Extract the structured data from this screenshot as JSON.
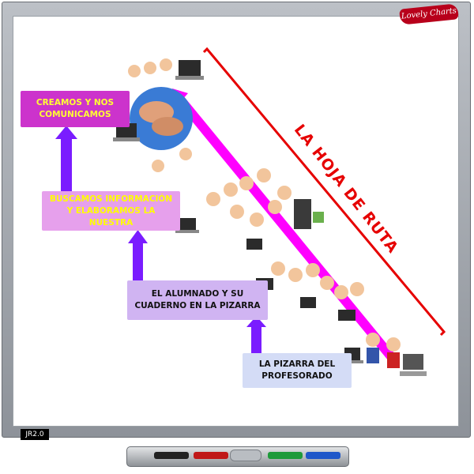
{
  "board": {
    "brand": "Lovely Charts",
    "badge": "JR2.0"
  },
  "title": "LA HOJA DE RUTA",
  "steps": [
    {
      "label": "CREAMOS Y NOS COMUNICAMOS",
      "color": "#cc33cc"
    },
    {
      "label": "BUSCAMOS INFORMACIÓN Y ELABORAMOS LA NUESTRA",
      "color": "#e6a0ec"
    },
    {
      "label": "EL ALUMNADO Y SU CUADERNO EN LA PIZARRA",
      "color": "#d0b4f2"
    },
    {
      "label": "LA PIZARRA DEL PROFESORADO",
      "color": "#d4dcf6"
    }
  ],
  "colors": {
    "arrow": "#7a1cff",
    "diagonal": "#ff00ff",
    "route_line": "#e60000"
  },
  "tray": {
    "markers": [
      "black",
      "red",
      "green",
      "blue"
    ]
  }
}
